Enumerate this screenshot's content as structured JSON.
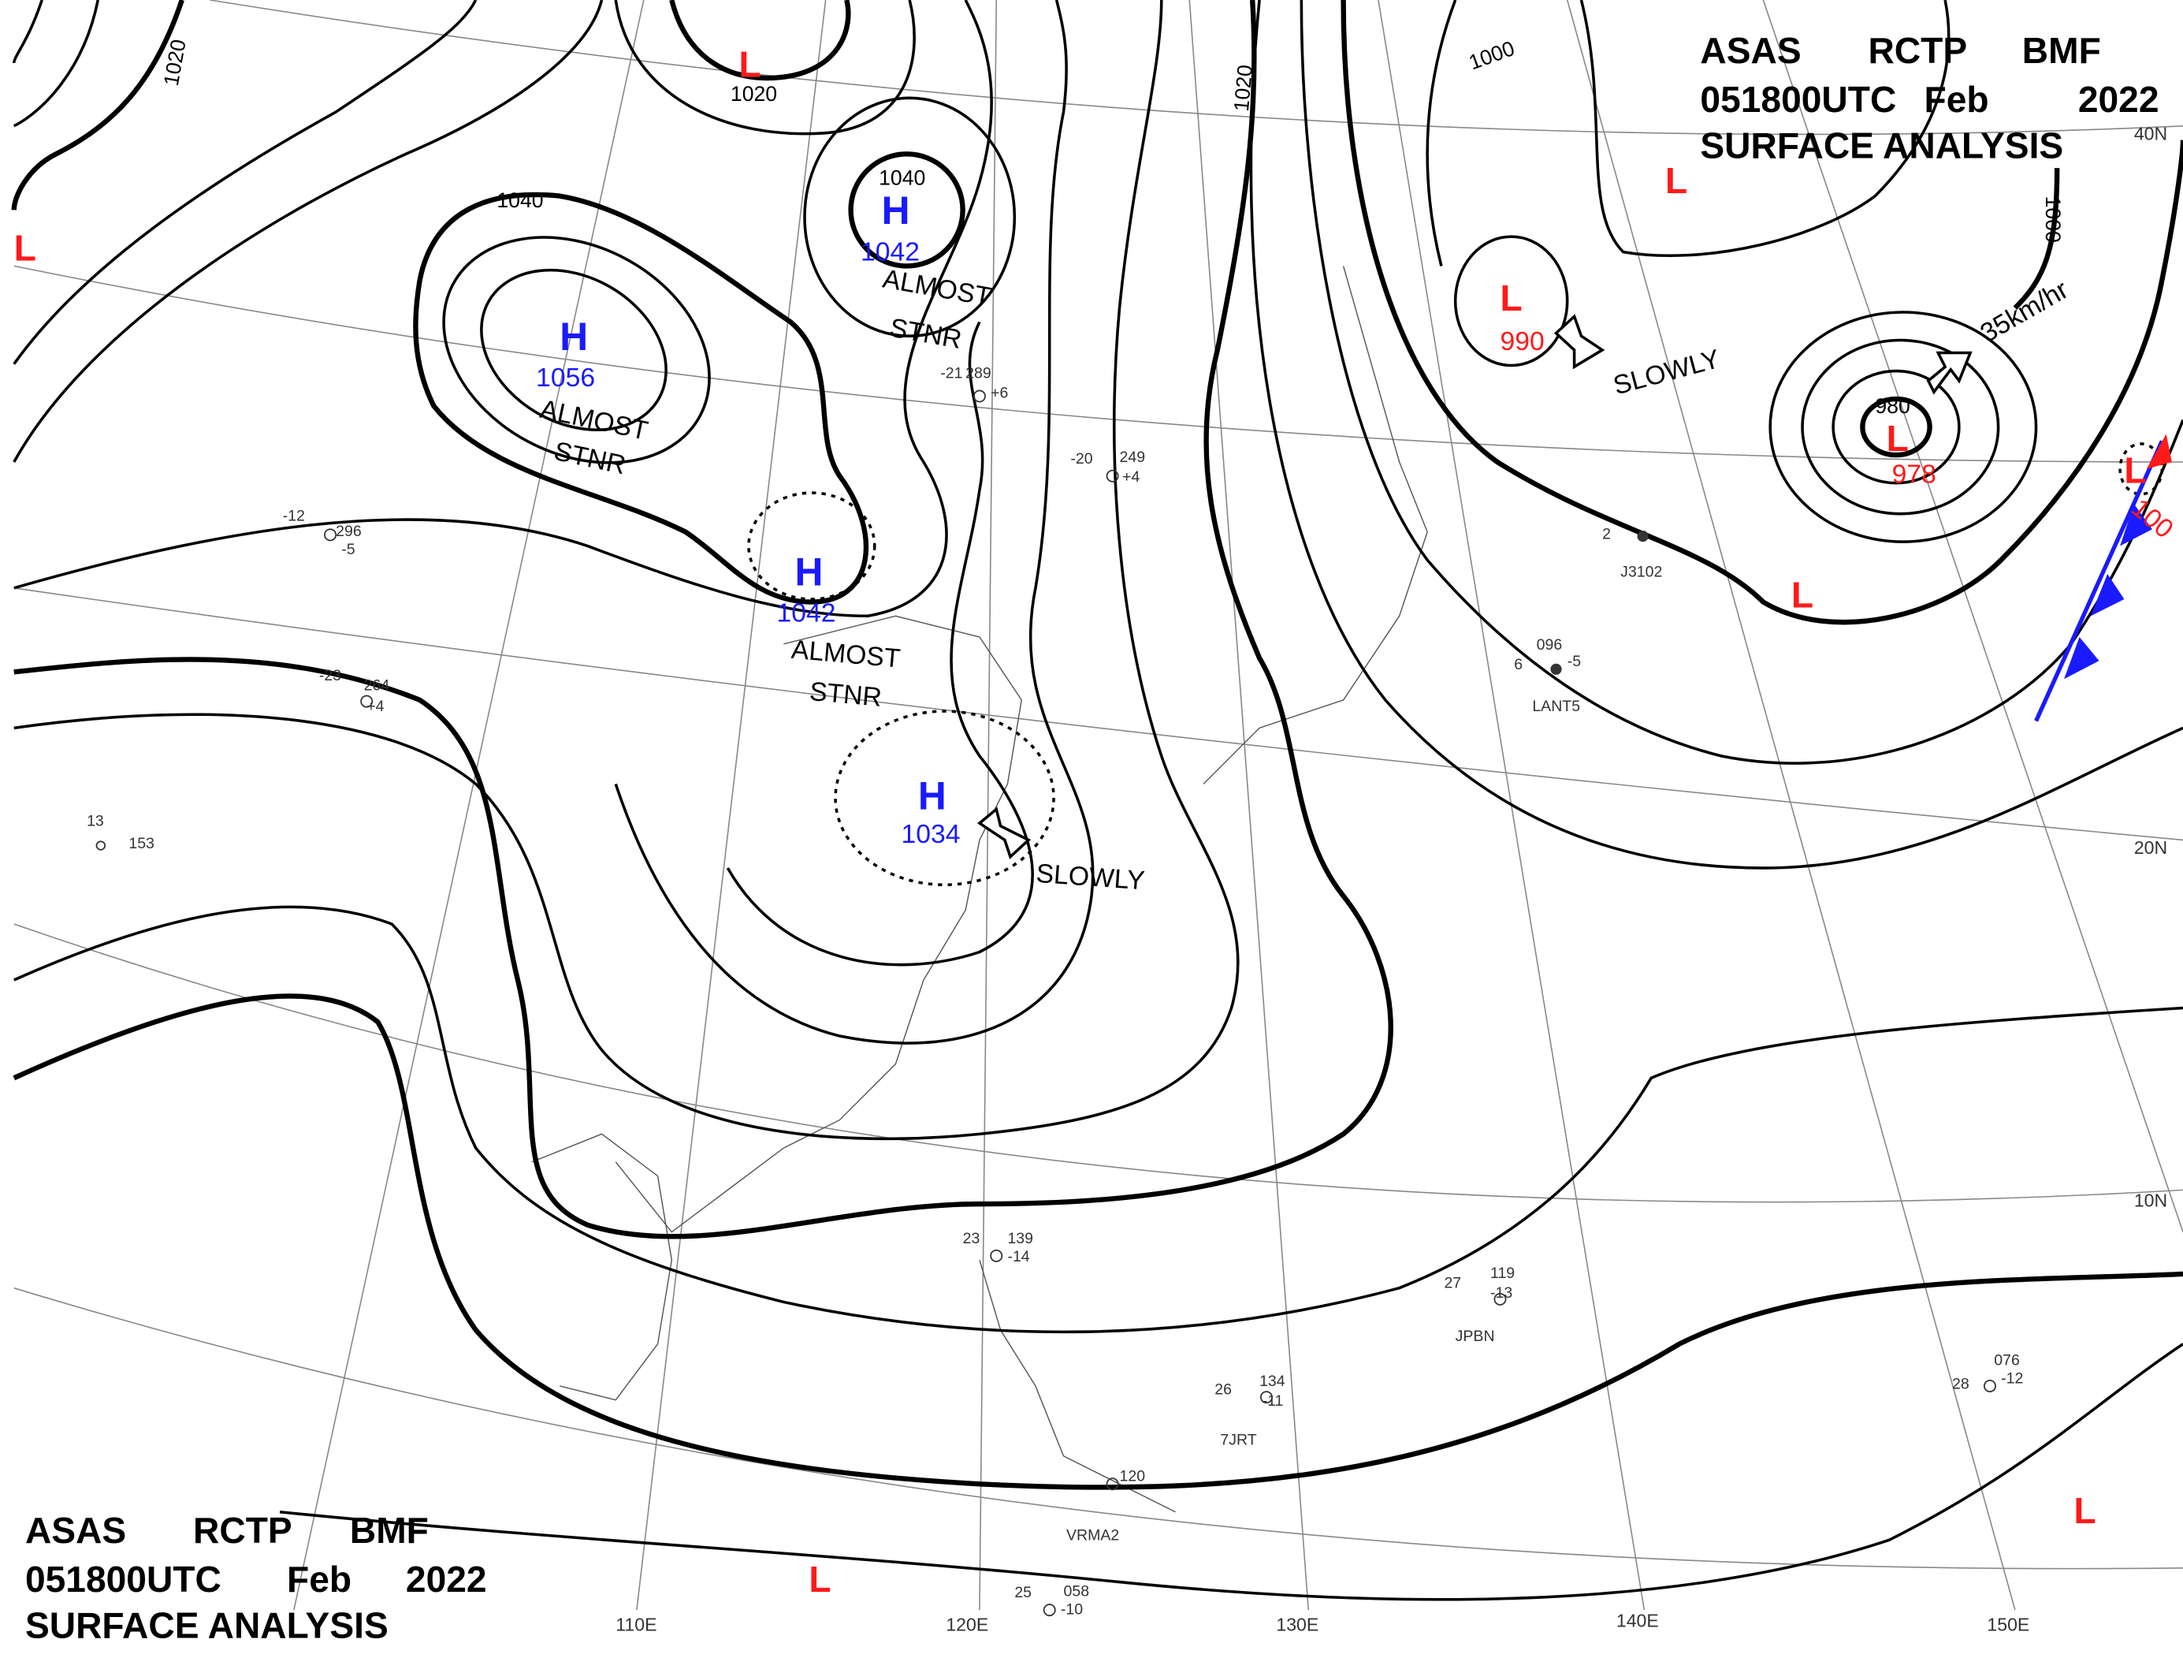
{
  "header": {
    "line1": [
      "ASAS",
      "RCTP",
      "BMF"
    ],
    "line2": [
      "051800UTC",
      "Feb",
      "2022"
    ],
    "line3": "SURFACE ANALYSIS"
  },
  "pressure_centers": [
    {
      "type": "H",
      "value": "1056"
    },
    {
      "type": "H",
      "value": "1042"
    },
    {
      "type": "H",
      "value": "1042"
    },
    {
      "type": "H",
      "value": "1034"
    },
    {
      "type": "L",
      "value": "990"
    },
    {
      "type": "L",
      "value": "978"
    },
    {
      "type": "L",
      "value": "100"
    },
    {
      "type": "L"
    },
    {
      "type": "L"
    },
    {
      "type": "L"
    },
    {
      "type": "L"
    },
    {
      "type": "L"
    },
    {
      "type": "L"
    }
  ],
  "isobar_labels": [
    "1020",
    "1020",
    "1040",
    "1040",
    "1020",
    "1000",
    "1000",
    "980"
  ],
  "annotations": [
    "ALMOST",
    "STNR",
    "ALMOST",
    "STNR",
    "ALMOST",
    "STNR",
    "SLOWLY",
    "SLOWLY",
    "35km/hr"
  ],
  "grid_labels": {
    "latitudes": [
      "40N",
      "20N",
      "10N"
    ],
    "longitudes": [
      "110E",
      "120E",
      "130E",
      "140E",
      "150E"
    ]
  },
  "stations": [
    {
      "id": "JPBN",
      "temp": "27",
      "pressure": "119",
      "tendency": "-13"
    },
    {
      "id": "7JRT",
      "temp": "26",
      "pressure": "134",
      "tendency": "-11"
    },
    {
      "id": "LANT5",
      "temp": "6",
      "pressure": "096",
      "tendency": "-5"
    },
    {
      "id": "J3102",
      "temp": "2"
    },
    {
      "id": "VRMA2",
      "pressure": "120"
    },
    {
      "temp": "23",
      "pressure": "139",
      "tendency": "-14"
    },
    {
      "temp": "-20",
      "pressure": "249",
      "tendency": "+4"
    },
    {
      "temp": "13",
      "pressure": "153"
    },
    {
      "temp": "28",
      "pressure": "076",
      "tendency": "-12"
    },
    {
      "temp": "25",
      "pressure": "058",
      "tendency": "-10"
    },
    {
      "temp": "-23",
      "pressure": "264",
      "tendency": "+4"
    },
    {
      "temp": "-12",
      "pressure": "296",
      "tendency": "-5"
    },
    {
      "temp": "-21",
      "pressure": "289",
      "tendency": "+6"
    }
  ]
}
